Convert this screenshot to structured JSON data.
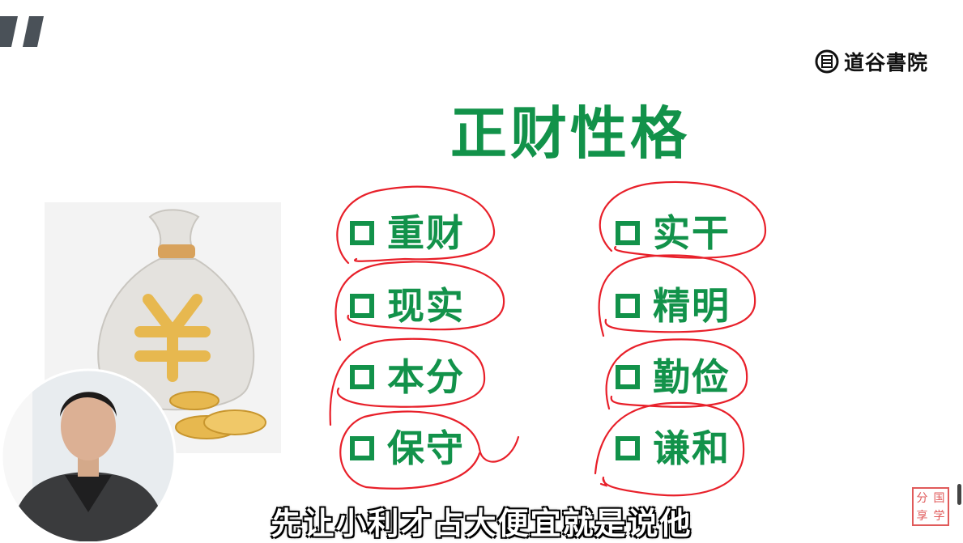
{
  "brand": {
    "name": "道谷書院",
    "seal_glyph": "書"
  },
  "slide": {
    "title": "正财性格",
    "left_column": [
      "重财",
      "现实",
      "本分",
      "保守"
    ],
    "right_column": [
      "实干",
      "精明",
      "勤俭",
      "谦和"
    ]
  },
  "subtitle": "先让小利才占大便宜就是说他",
  "stamp": {
    "chars": [
      "分",
      "国",
      "享",
      "学"
    ]
  },
  "colors": {
    "accent": "#12924a",
    "annotation": "#e8202a",
    "coin": "#e7b84f",
    "bag": "#e4e2de"
  }
}
